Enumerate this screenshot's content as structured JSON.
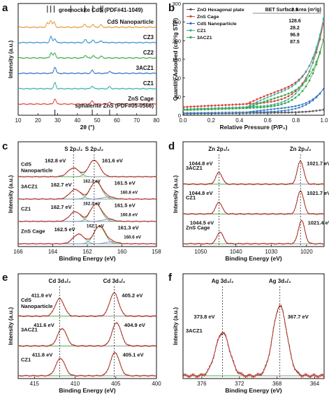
{
  "figure": {
    "panel_letters": [
      "a",
      "b",
      "c",
      "d",
      "e",
      "f"
    ]
  },
  "chart_data": [
    {
      "panel": "a",
      "type": "line",
      "xlabel": "2θ (°)",
      "ylabel": "Intensity (a.u.)",
      "xlim": [
        10,
        80
      ],
      "xticks": [
        "10",
        "20",
        "30",
        "40",
        "50",
        "60",
        "70",
        "80"
      ],
      "reference_top": {
        "label": "greenockite CdS (PDF#41-1049)",
        "sticks": [
          24.8,
          26.5,
          28.2,
          36.6,
          43.7,
          47.8,
          51.8,
          52.8
        ]
      },
      "reference_bottom": {
        "label": "sphalerite ZnS (PDF#05-0566)",
        "sticks": [
          28.6,
          47.5,
          56.3
        ]
      },
      "series": [
        {
          "name": "CdS Nanoparticle",
          "color": "#e8963a",
          "peaks": [
            [
              24.8,
              0.45
            ],
            [
              26.5,
              0.7
            ],
            [
              28.2,
              0.5
            ],
            [
              43.7,
              0.35
            ],
            [
              47.8,
              0.3
            ],
            [
              51.8,
              0.25
            ]
          ]
        },
        {
          "name": "CZ3",
          "color": "#2f8fd1",
          "peaks": [
            [
              26.6,
              0.6
            ],
            [
              28.5,
              0.4
            ],
            [
              44,
              0.3
            ],
            [
              48,
              0.25
            ],
            [
              52,
              0.2
            ]
          ]
        },
        {
          "name": "CZ2",
          "color": "#3aa645",
          "peaks": [
            [
              26.7,
              0.55
            ],
            [
              28.5,
              0.5
            ],
            [
              44,
              0.28
            ],
            [
              48,
              0.25
            ],
            [
              52,
              0.18
            ]
          ]
        },
        {
          "name": "3ACZ1",
          "color": "#2a6ec4",
          "peaks": [
            [
              28.6,
              0.65
            ],
            [
              47.5,
              0.3
            ],
            [
              56.3,
              0.22
            ]
          ]
        },
        {
          "name": "CZ1",
          "color": "#31b0a0",
          "peaks": [
            [
              28.6,
              0.6
            ],
            [
              47.5,
              0.28
            ],
            [
              56.3,
              0.2
            ]
          ]
        },
        {
          "name": "ZnS Cage",
          "color": "#e0403a",
          "peaks": [
            [
              28.6,
              0.55
            ],
            [
              47.5,
              0.3
            ],
            [
              56.3,
              0.22
            ]
          ]
        }
      ]
    },
    {
      "panel": "b",
      "type": "line",
      "xlabel": "Relative Pressure (P/P₀)",
      "ylabel": "Quantity Adsorbed (cm³/g STP)",
      "xlim": [
        0,
        1.0
      ],
      "ylim": [
        0,
        300
      ],
      "xticks": [
        "0.0",
        "0.2",
        "0.4",
        "0.6",
        "0.8",
        "1.0"
      ],
      "yticks": [
        "0",
        "50",
        "100",
        "150",
        "200",
        "250",
        "300"
      ],
      "legend_title": "BET Surface Area (m²/g)",
      "legend_position": "top-left",
      "series": [
        {
          "name": "ZnO Hexagonal plate",
          "bet": "2.9",
          "color": "#555555",
          "marker": "diamond",
          "base": 4,
          "rise": 8
        },
        {
          "name": "ZnS Cage",
          "bet": "128.6",
          "color": "#e0403a",
          "marker": "circle",
          "base": 22,
          "rise": 215
        },
        {
          "name": "CdS Nanoparticle",
          "bet": "28.2",
          "color": "#2a6ec4",
          "marker": "triangle",
          "base": 6,
          "rise": 62
        },
        {
          "name": "CZ1",
          "bet": "96.9",
          "color": "#31b0a0",
          "marker": "diamond",
          "base": 16,
          "rise": 240
        },
        {
          "name": "3ACZ1",
          "bet": "87.5",
          "color": "#3aa645",
          "marker": "square",
          "base": 14,
          "rise": 185
        }
      ]
    },
    {
      "panel": "c",
      "type": "line",
      "title": "S 2p",
      "xlabel": "Binding Energy (eV)",
      "ylabel": "Intensity (a.u.)",
      "xlim": [
        166,
        158
      ],
      "xticks": [
        "166",
        "164",
        "162",
        "160",
        "158"
      ],
      "headers": {
        "left": "S 2p₁/₂",
        "right": "S 2p₃/₂"
      },
      "spectra": [
        {
          "name": "CdS\nNanoparticle",
          "color": "#e0403a",
          "peaks": [
            [
              162.8,
              0.5
            ],
            [
              161.6,
              0.95
            ]
          ],
          "labels": [
            "162.8 eV",
            "161.6 eV"
          ]
        },
        {
          "name": "3ACZ1",
          "color": "#e0403a",
          "peaks": [
            [
              162.7,
              0.55
            ],
            [
              161.5,
              1.0
            ],
            [
              160.8,
              0.12
            ]
          ],
          "labels": [
            "162.7 eV",
            "162.3 eV",
            "161.5 eV",
            "160.8 eV"
          ]
        },
        {
          "name": "CZ1",
          "color": "#e0403a",
          "peaks": [
            [
              162.7,
              0.55
            ],
            [
              161.5,
              1.0
            ],
            [
              160.8,
              0.12
            ]
          ],
          "labels": [
            "162.7 eV",
            "162.3 eV",
            "161.5 eV",
            "160.8 eV"
          ]
        },
        {
          "name": "ZnS Cage",
          "color": "#e0403a",
          "peaks": [
            [
              162.5,
              0.55
            ],
            [
              161.3,
              1.0
            ],
            [
              160.6,
              0.12
            ]
          ],
          "labels": [
            "162.5 eV",
            "162.1 eV",
            "161.3 eV",
            "160.6 eV"
          ]
        }
      ]
    },
    {
      "panel": "d",
      "type": "line",
      "xlabel": "Binding Energy (eV)",
      "ylabel": "Intensity (a.u.)",
      "xlim": [
        1055,
        1015
      ],
      "xticks": [
        "1050",
        "1040",
        "1030",
        "1020"
      ],
      "headers": {
        "left": "Zn 2p₁/₂",
        "right": "Zn 2p₃/₂"
      },
      "spectra": [
        {
          "name": "3ACZ1",
          "color": "#e0403a",
          "peaks": [
            [
              1044.8,
              0.5
            ],
            [
              1021.7,
              1.0
            ]
          ],
          "labels": [
            "1044.8 eV",
            "1021.7 eV"
          ]
        },
        {
          "name": "CZ1",
          "color": "#e0403a",
          "peaks": [
            [
              1044.8,
              0.5
            ],
            [
              1021.7,
              1.0
            ]
          ],
          "labels": [
            "1044.8 eV",
            "1021.7 eV"
          ]
        },
        {
          "name": "ZnS Cage",
          "color": "#e0403a",
          "peaks": [
            [
              1044.5,
              0.5
            ],
            [
              1021.4,
              1.0
            ]
          ],
          "labels": [
            "1044.5 eV",
            "1021.4 eV"
          ]
        }
      ]
    },
    {
      "panel": "e",
      "type": "line",
      "xlabel": "Binding Energy (eV)",
      "ylabel": "Intensity (a.u.)",
      "xlim": [
        417,
        400
      ],
      "xticks": [
        "415",
        "410",
        "405",
        "400"
      ],
      "headers": {
        "left": "Cd 3d₃/₂",
        "right": "Cd 3d₅/₂"
      },
      "spectra": [
        {
          "name": "CdS\nNanoparticle",
          "color": "#e0403a",
          "peaks": [
            [
              411.9,
              0.75
            ],
            [
              405.2,
              1.0
            ]
          ],
          "labels": [
            "411.9 eV",
            "405.2 eV"
          ]
        },
        {
          "name": "3ACZ1",
          "color": "#e0403a",
          "peaks": [
            [
              411.6,
              0.75
            ],
            [
              404.9,
              1.0
            ]
          ],
          "labels": [
            "411.6 eV",
            "404.9 eV"
          ]
        },
        {
          "name": "CZ1",
          "color": "#e0403a",
          "peaks": [
            [
              411.8,
              0.75
            ],
            [
              405.1,
              1.0
            ]
          ],
          "labels": [
            "411.8 eV",
            "405.1 eV"
          ]
        }
      ]
    },
    {
      "panel": "f",
      "type": "line",
      "xlabel": "Binding Energy (eV)",
      "ylabel": "Intensity (a.u.)",
      "xlim": [
        378,
        363
      ],
      "xticks": [
        "376",
        "372",
        "368",
        "364"
      ],
      "headers": {
        "left": "Ag 3d₃/₂",
        "right": "Ag 3d₅/₂"
      },
      "spectra": [
        {
          "name": "3ACZ1",
          "color": "#e0403a",
          "peaks": [
            [
              373.8,
              0.62
            ],
            [
              367.7,
              1.0
            ]
          ],
          "labels": [
            "373.8 eV",
            "367.7 eV"
          ]
        }
      ]
    }
  ]
}
